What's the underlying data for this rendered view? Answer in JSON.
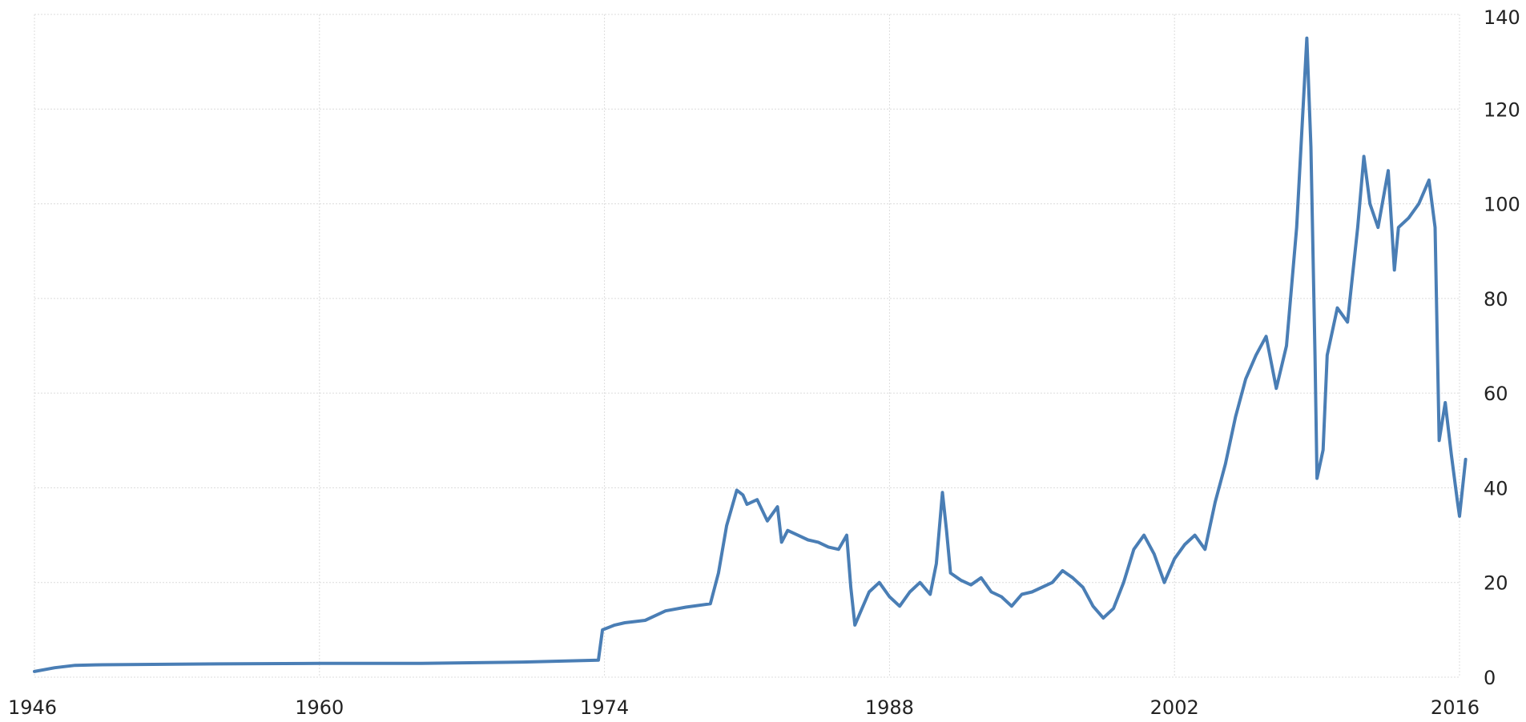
{
  "chart_data": {
    "type": "line",
    "title": "",
    "xlabel": "",
    "ylabel": "",
    "xlim": [
      1946,
      2016
    ],
    "ylim": [
      0,
      140
    ],
    "grid": true,
    "y_axis_side": "right",
    "x_ticks": [
      "1946",
      "1960",
      "1974",
      "1988",
      "2002",
      "2016"
    ],
    "y_ticks": [
      "0",
      "20",
      "40",
      "60",
      "80",
      "100",
      "120",
      "140"
    ],
    "line_color": "#4a7eb5",
    "series": [
      {
        "points": [
          [
            1946.0,
            1.2
          ],
          [
            1947.0,
            2.0
          ],
          [
            1948.0,
            2.5
          ],
          [
            1949.0,
            2.6
          ],
          [
            1955.0,
            2.8
          ],
          [
            1960.0,
            2.9
          ],
          [
            1965.0,
            2.9
          ],
          [
            1970.0,
            3.2
          ],
          [
            1973.7,
            3.6
          ],
          [
            1973.9,
            10.0
          ],
          [
            1974.5,
            11.0
          ],
          [
            1975.0,
            11.5
          ],
          [
            1976.0,
            12.0
          ],
          [
            1977.0,
            14.0
          ],
          [
            1978.0,
            14.8
          ],
          [
            1979.2,
            15.5
          ],
          [
            1979.6,
            22.0
          ],
          [
            1980.0,
            32.0
          ],
          [
            1980.5,
            39.5
          ],
          [
            1980.8,
            38.5
          ],
          [
            1981.0,
            36.5
          ],
          [
            1981.5,
            37.5
          ],
          [
            1982.0,
            33.0
          ],
          [
            1982.5,
            36.0
          ],
          [
            1982.7,
            28.5
          ],
          [
            1983.0,
            31.0
          ],
          [
            1983.5,
            30.0
          ],
          [
            1984.0,
            29.0
          ],
          [
            1984.5,
            28.5
          ],
          [
            1985.0,
            27.5
          ],
          [
            1985.5,
            27.0
          ],
          [
            1985.9,
            30.0
          ],
          [
            1986.1,
            19.0
          ],
          [
            1986.3,
            11.0
          ],
          [
            1986.6,
            14.0
          ],
          [
            1987.0,
            18.0
          ],
          [
            1987.5,
            20.0
          ],
          [
            1988.0,
            17.0
          ],
          [
            1988.5,
            15.0
          ],
          [
            1989.0,
            18.0
          ],
          [
            1989.5,
            20.0
          ],
          [
            1990.0,
            17.5
          ],
          [
            1990.3,
            24.0
          ],
          [
            1990.6,
            39.0
          ],
          [
            1990.8,
            31.0
          ],
          [
            1991.0,
            22.0
          ],
          [
            1991.5,
            20.5
          ],
          [
            1992.0,
            19.5
          ],
          [
            1992.5,
            21.0
          ],
          [
            1993.0,
            18.0
          ],
          [
            1993.5,
            17.0
          ],
          [
            1994.0,
            15.0
          ],
          [
            1994.5,
            17.5
          ],
          [
            1995.0,
            18.0
          ],
          [
            1996.0,
            20.0
          ],
          [
            1996.5,
            22.5
          ],
          [
            1997.0,
            21.0
          ],
          [
            1997.5,
            19.0
          ],
          [
            1998.0,
            15.0
          ],
          [
            1998.5,
            12.5
          ],
          [
            1999.0,
            14.5
          ],
          [
            1999.5,
            20.0
          ],
          [
            2000.0,
            27.0
          ],
          [
            2000.5,
            30.0
          ],
          [
            2001.0,
            26.0
          ],
          [
            2001.5,
            20.0
          ],
          [
            2002.0,
            25.0
          ],
          [
            2002.5,
            28.0
          ],
          [
            2003.0,
            30.0
          ],
          [
            2003.5,
            27.0
          ],
          [
            2004.0,
            37.0
          ],
          [
            2004.5,
            45.0
          ],
          [
            2005.0,
            55.0
          ],
          [
            2005.5,
            63.0
          ],
          [
            2006.0,
            68.0
          ],
          [
            2006.5,
            72.0
          ],
          [
            2007.0,
            61.0
          ],
          [
            2007.5,
            70.0
          ],
          [
            2008.0,
            95.0
          ],
          [
            2008.5,
            135.0
          ],
          [
            2008.7,
            112.0
          ],
          [
            2008.9,
            68.0
          ],
          [
            2009.0,
            42.0
          ],
          [
            2009.3,
            48.0
          ],
          [
            2009.5,
            68.0
          ],
          [
            2010.0,
            78.0
          ],
          [
            2010.5,
            75.0
          ],
          [
            2011.0,
            95.0
          ],
          [
            2011.3,
            110.0
          ],
          [
            2011.6,
            100.0
          ],
          [
            2012.0,
            95.0
          ],
          [
            2012.5,
            107.0
          ],
          [
            2012.8,
            86.0
          ],
          [
            2013.0,
            95.0
          ],
          [
            2013.5,
            97.0
          ],
          [
            2014.0,
            100.0
          ],
          [
            2014.5,
            105.0
          ],
          [
            2014.8,
            95.0
          ],
          [
            2015.0,
            50.0
          ],
          [
            2015.3,
            58.0
          ],
          [
            2015.6,
            47.0
          ],
          [
            2015.9,
            37.0
          ],
          [
            2016.0,
            34.0
          ],
          [
            2016.3,
            46.0
          ]
        ]
      }
    ]
  }
}
